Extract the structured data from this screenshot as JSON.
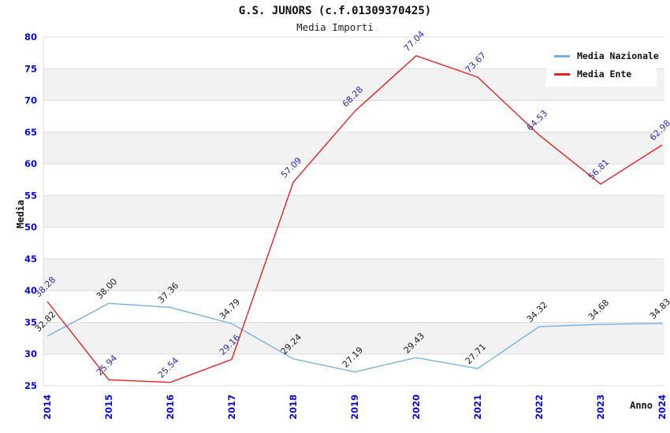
{
  "title": "G.S. JUNORS (c.f.01309370425)",
  "subtitle": "Media Importi",
  "axes": {
    "y_title": "Media",
    "x_title": "Anno",
    "yticks": [
      25,
      30,
      35,
      40,
      45,
      50,
      55,
      60,
      65,
      70,
      75,
      80
    ],
    "tick_color": "#0a0ad8"
  },
  "colors": {
    "band_gray": "#f2f2f2",
    "band_white": "#ffffff",
    "gridline": "#dcdcdc",
    "axis_title": "#111111"
  },
  "chart_data": {
    "type": "line",
    "x": [
      "2014",
      "2015",
      "2016",
      "2017",
      "2018",
      "2019",
      "2020",
      "2021",
      "2022",
      "2023",
      "2024"
    ],
    "series": [
      {
        "name": "Media Nazionale",
        "color": "#7ab1e0",
        "label_color": "#1a1a1a",
        "values": [
          32.82,
          38.0,
          37.36,
          34.79,
          29.24,
          27.19,
          29.43,
          27.71,
          34.32,
          34.68,
          34.83
        ]
      },
      {
        "name": "Media Ente",
        "color": "#e62222",
        "label_color": "#2a2ac8",
        "values": [
          38.28,
          25.94,
          25.54,
          29.16,
          57.09,
          68.28,
          77.04,
          73.67,
          64.53,
          56.81,
          62.98
        ]
      }
    ],
    "title": "G.S. JUNORS (c.f.01309370425)",
    "subtitle": "Media Importi",
    "xlabel": "Anno",
    "ylabel": "Media",
    "ylim": [
      25,
      80
    ],
    "ytick_step": 5,
    "grid": true,
    "legend_position": "top-right",
    "data_labels": "two-decimals, rotated 45deg"
  }
}
